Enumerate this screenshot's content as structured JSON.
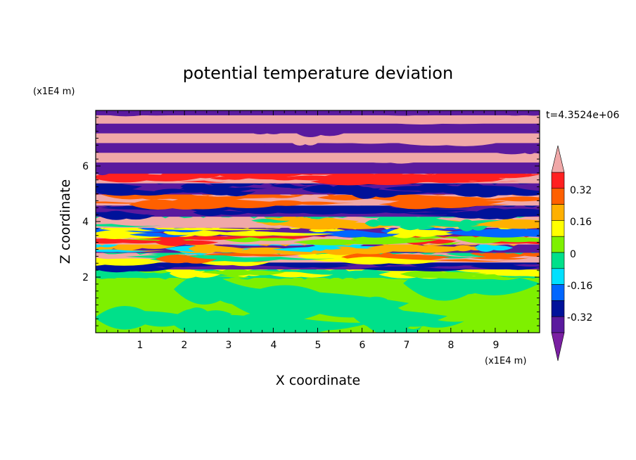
{
  "chart_data": {
    "type": "heatmap",
    "title": "potential temperature deviation",
    "xlabel": "X coordinate",
    "ylabel": "Z coordinate",
    "x_unit": "(x1E4 m)",
    "y_unit": "(x1E4 m)",
    "time_label": "t=4.3524e+06",
    "xlim": [
      0,
      10
    ],
    "ylim": [
      0,
      8
    ],
    "x_ticks": [
      "1",
      "2",
      "3",
      "4",
      "5",
      "6",
      "7",
      "8",
      "9"
    ],
    "y_ticks": [
      "2",
      "4",
      "6"
    ],
    "colorbar_labels": [
      "0.32",
      "0.16",
      "0",
      "-0.16",
      "-0.32"
    ],
    "level_colors": [
      "#7a1fa2",
      "#5a1a9e",
      "#00129a",
      "#0066ff",
      "#00e0ff",
      "#00e08a",
      "#7ef000",
      "#ffff00",
      "#ffb000",
      "#ff6000",
      "#ff2020",
      "#f0a8a8"
    ],
    "bands": [
      {
        "z0": 0.0,
        "z1": 2.0,
        "colors": [
          "#7ef000",
          "#00e08a"
        ]
      },
      {
        "z0": 2.0,
        "z1": 2.3,
        "colors": [
          "#00e08a",
          "#7ef000",
          "#ffff00"
        ]
      },
      {
        "z0": 2.3,
        "z1": 2.55,
        "colors": [
          "#5a1a9e",
          "#00129a"
        ]
      },
      {
        "z0": 2.55,
        "z1": 2.9,
        "colors": [
          "#f0a8a8",
          "#ff6000",
          "#ffff00",
          "#00e08a"
        ]
      },
      {
        "z0": 2.9,
        "z1": 3.2,
        "colors": [
          "#5a1a9e",
          "#00e0ff",
          "#ffb000"
        ]
      },
      {
        "z0": 3.2,
        "z1": 3.5,
        "colors": [
          "#f0a8a8",
          "#7ef000",
          "#ff2020"
        ]
      },
      {
        "z0": 3.5,
        "z1": 3.8,
        "colors": [
          "#5a1a9e",
          "#0066ff",
          "#ffff00"
        ]
      },
      {
        "z0": 3.8,
        "z1": 4.2,
        "colors": [
          "#f0a8a8",
          "#ffb000",
          "#00e08a"
        ]
      },
      {
        "z0": 4.2,
        "z1": 4.6,
        "colors": [
          "#5a1a9e",
          "#00129a"
        ]
      },
      {
        "z0": 4.6,
        "z1": 5.0,
        "colors": [
          "#f0a8a8",
          "#ff6000"
        ]
      },
      {
        "z0": 5.0,
        "z1": 5.4,
        "colors": [
          "#5a1a9e",
          "#00129a"
        ]
      },
      {
        "z0": 5.4,
        "z1": 5.75,
        "colors": [
          "#f0a8a8",
          "#ff2020"
        ]
      },
      {
        "z0": 5.75,
        "z1": 6.15,
        "colors": [
          "#5a1a9e"
        ]
      },
      {
        "z0": 6.15,
        "z1": 6.5,
        "colors": [
          "#f0a8a8"
        ]
      },
      {
        "z0": 6.5,
        "z1": 6.85,
        "colors": [
          "#5a1a9e"
        ]
      },
      {
        "z0": 6.85,
        "z1": 7.2,
        "colors": [
          "#f0a8a8"
        ]
      },
      {
        "z0": 7.2,
        "z1": 7.55,
        "colors": [
          "#5a1a9e"
        ]
      },
      {
        "z0": 7.55,
        "z1": 7.85,
        "colors": [
          "#f0a8a8"
        ]
      },
      {
        "z0": 7.85,
        "z1": 8.0,
        "colors": [
          "#5a1a9e"
        ]
      }
    ]
  }
}
